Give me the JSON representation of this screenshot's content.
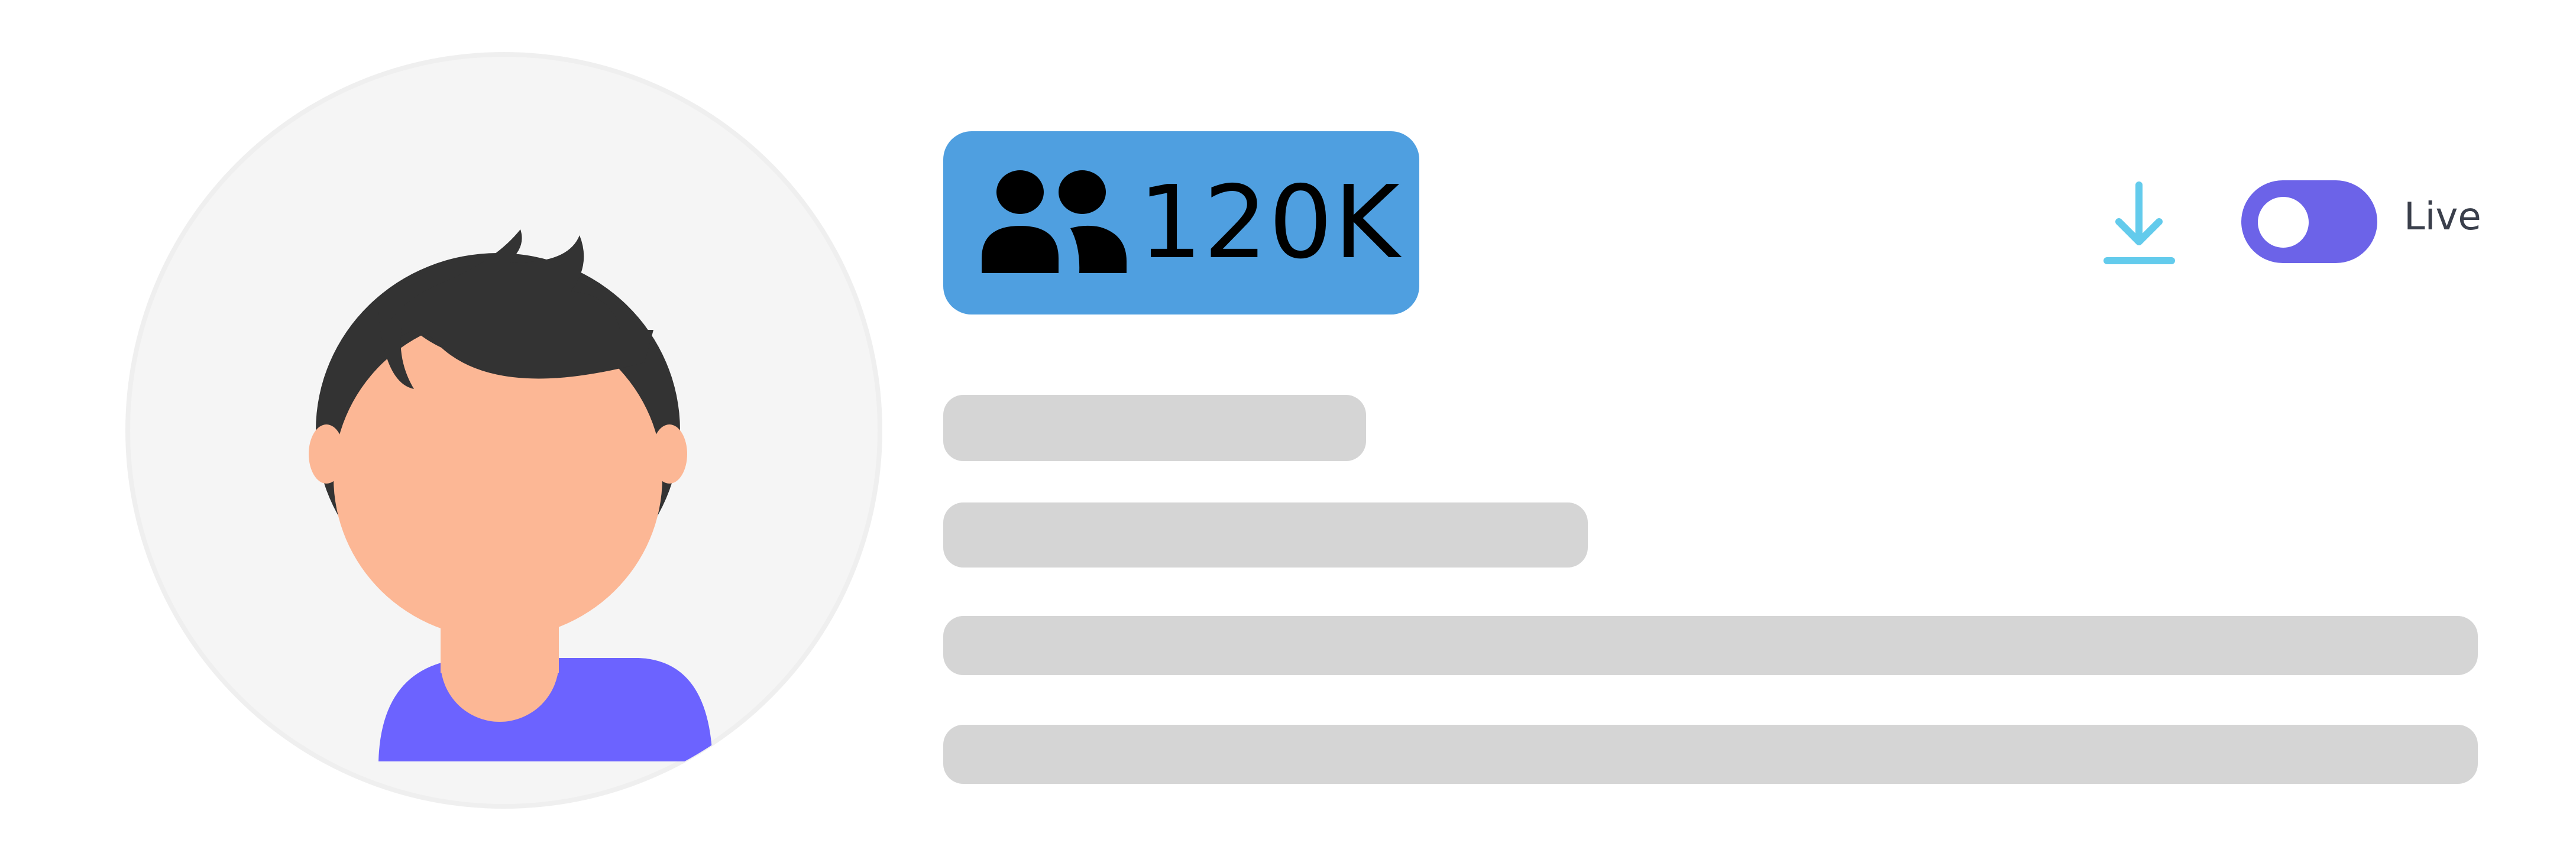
{
  "profile": {
    "avatar_icon": "user-avatar-illustration",
    "followers": {
      "icon": "users-icon",
      "count": "120K",
      "badge_color": "#4f9fe0"
    }
  },
  "toolbar": {
    "download_icon": "download-icon",
    "download_color": "#63cbec",
    "live_toggle": {
      "label": "Live",
      "on": true,
      "color": "#6c63e8"
    }
  },
  "placeholder_lines": 4,
  "colors": {
    "skeleton": "#d5d5d5",
    "shirt": "#6c63ff",
    "skin": "#fcb795",
    "hair": "#333333",
    "avatar_bg": "#f5f5f5"
  }
}
